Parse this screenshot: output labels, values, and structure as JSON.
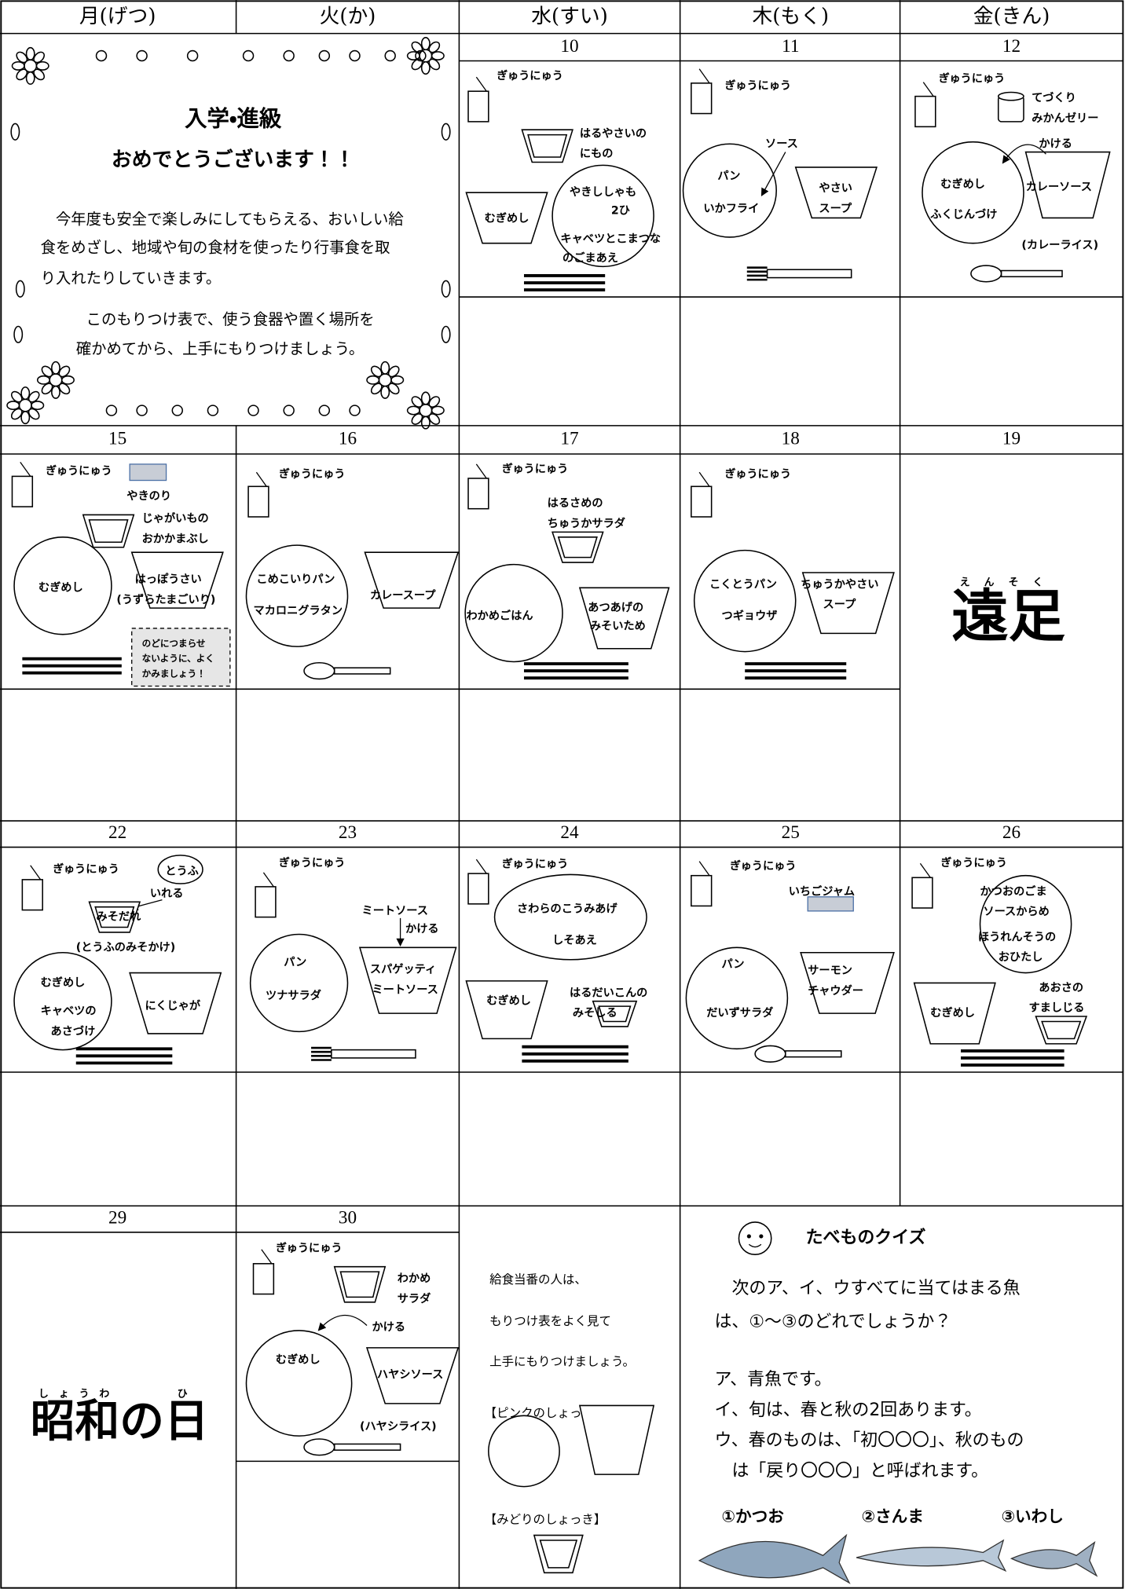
{
  "header": {
    "days": [
      "月(げつ)",
      "火(か)",
      "水(すい)",
      "木(もく)",
      "金(きん)"
    ]
  },
  "welcome": {
    "title": "入学・進級",
    "subtitle": "おめでとうございます！！",
    "lines": [
      "今年度も安全で楽しみにしてもらえる、おいしい給",
      "食をめざし、地域や旬の食材を使ったり行事食を取",
      "り入れたりしていきます。",
      "このもりつけ表で、使う食器や置く場所を",
      "確かめてから、上手にもりつけましょう。"
    ]
  },
  "days": [
    {
      "date": "10",
      "items": [
        "ぎゅうにゅう",
        "はるやさいの",
        "にもの",
        "むぎめし",
        "やきししゃも",
        "2ひ",
        "キャベツとこまつな",
        "のごまあえ"
      ]
    },
    {
      "date": "11",
      "items": [
        "ぎゅうにゅう",
        "ソース",
        "パン",
        "いかフライ",
        "やさい",
        "スープ"
      ]
    },
    {
      "date": "12",
      "items": [
        "ぎゅうにゅう",
        "てづくり",
        "みかんゼリー",
        "かける",
        "むぎめし",
        "ふくじんづけ",
        "カレーソース",
        "(カレーライス)"
      ]
    },
    {
      "date": "15",
      "items": [
        "ぎゅうにゅう",
        "やきのり",
        "じゃがいもの",
        "おかかまぶし",
        "むぎめし",
        "はっぽうさい",
        "(うずらたまごいり)",
        "のどにつまらせ",
        "ないように、よく",
        "かみましょう！"
      ]
    },
    {
      "date": "16",
      "items": [
        "ぎゅうにゅう",
        "こめこいりパン",
        "マカロニグラタン",
        "カレースープ"
      ]
    },
    {
      "date": "17",
      "items": [
        "ぎゅうにゅう",
        "はるさめの",
        "ちゅうかサラダ",
        "わかめごはん",
        "あつあげの",
        "みそいため"
      ]
    },
    {
      "date": "18",
      "items": [
        "ぎゅうにゅう",
        "こくとうパン",
        "つギョウザ",
        "ちゅうかやさい",
        "スープ"
      ]
    },
    {
      "date": "19",
      "items": [
        "えんそく",
        "遠足"
      ]
    },
    {
      "date": "22",
      "items": [
        "ぎゅうにゅう",
        "とうふ",
        "いれる",
        "みそだれ",
        "(とうふのみそかけ)",
        "むぎめし",
        "キャベツの",
        "あさづけ",
        "にくじゃが"
      ]
    },
    {
      "date": "23",
      "items": [
        "ぎゅうにゅう",
        "ミートソース",
        "かける",
        "パン",
        "ツナサラダ",
        "スパゲッティ",
        "ミートソース"
      ]
    },
    {
      "date": "24",
      "items": [
        "ぎゅうにゅう",
        "さわらのこうみあげ",
        "しそあえ",
        "むぎめし",
        "はるだいこんの",
        "みそしる"
      ]
    },
    {
      "date": "25",
      "items": [
        "ぎゅうにゅう",
        "いちごジャム",
        "パン",
        "だいずサラダ",
        "サーモン",
        "チャウダー"
      ]
    },
    {
      "date": "26",
      "items": [
        "ぎゅうにゅう",
        "かつおのごま",
        "ソースからめ",
        "ほうれんそうの",
        "おひたし",
        "むぎめし",
        "あおさの",
        "すましじる"
      ]
    },
    {
      "date": "29",
      "items": [
        "しょうわ",
        "ひ",
        "昭和の日"
      ]
    },
    {
      "date": "30",
      "items": [
        "ぎゅうにゅう",
        "わかめ",
        "サラダ",
        "かける",
        "むぎめし",
        "ハヤシソース",
        "(ハヤシライス)"
      ]
    }
  ],
  "serving": {
    "lines": [
      "給食当番の人は、",
      "もりつけ表をよく見て",
      "上手にもりつけましょう。"
    ],
    "pink": "【ピンクのしょっき】",
    "green": "【みどりのしょっき】"
  },
  "quiz": {
    "title": "たべものクイズ",
    "lines": [
      "次のア、イ、ウすべてに当てはまる魚",
      "は、①～③のどれでしょうか？",
      "ア、青魚です。",
      "イ、旬は、春と秋の2回あります。",
      "ウ、春のものは、「初〇〇〇」、秋のもの",
      "は「戻り〇〇〇」と呼ばれます。"
    ],
    "choices": [
      "①かつお",
      "②さんま",
      "③いわし"
    ]
  }
}
